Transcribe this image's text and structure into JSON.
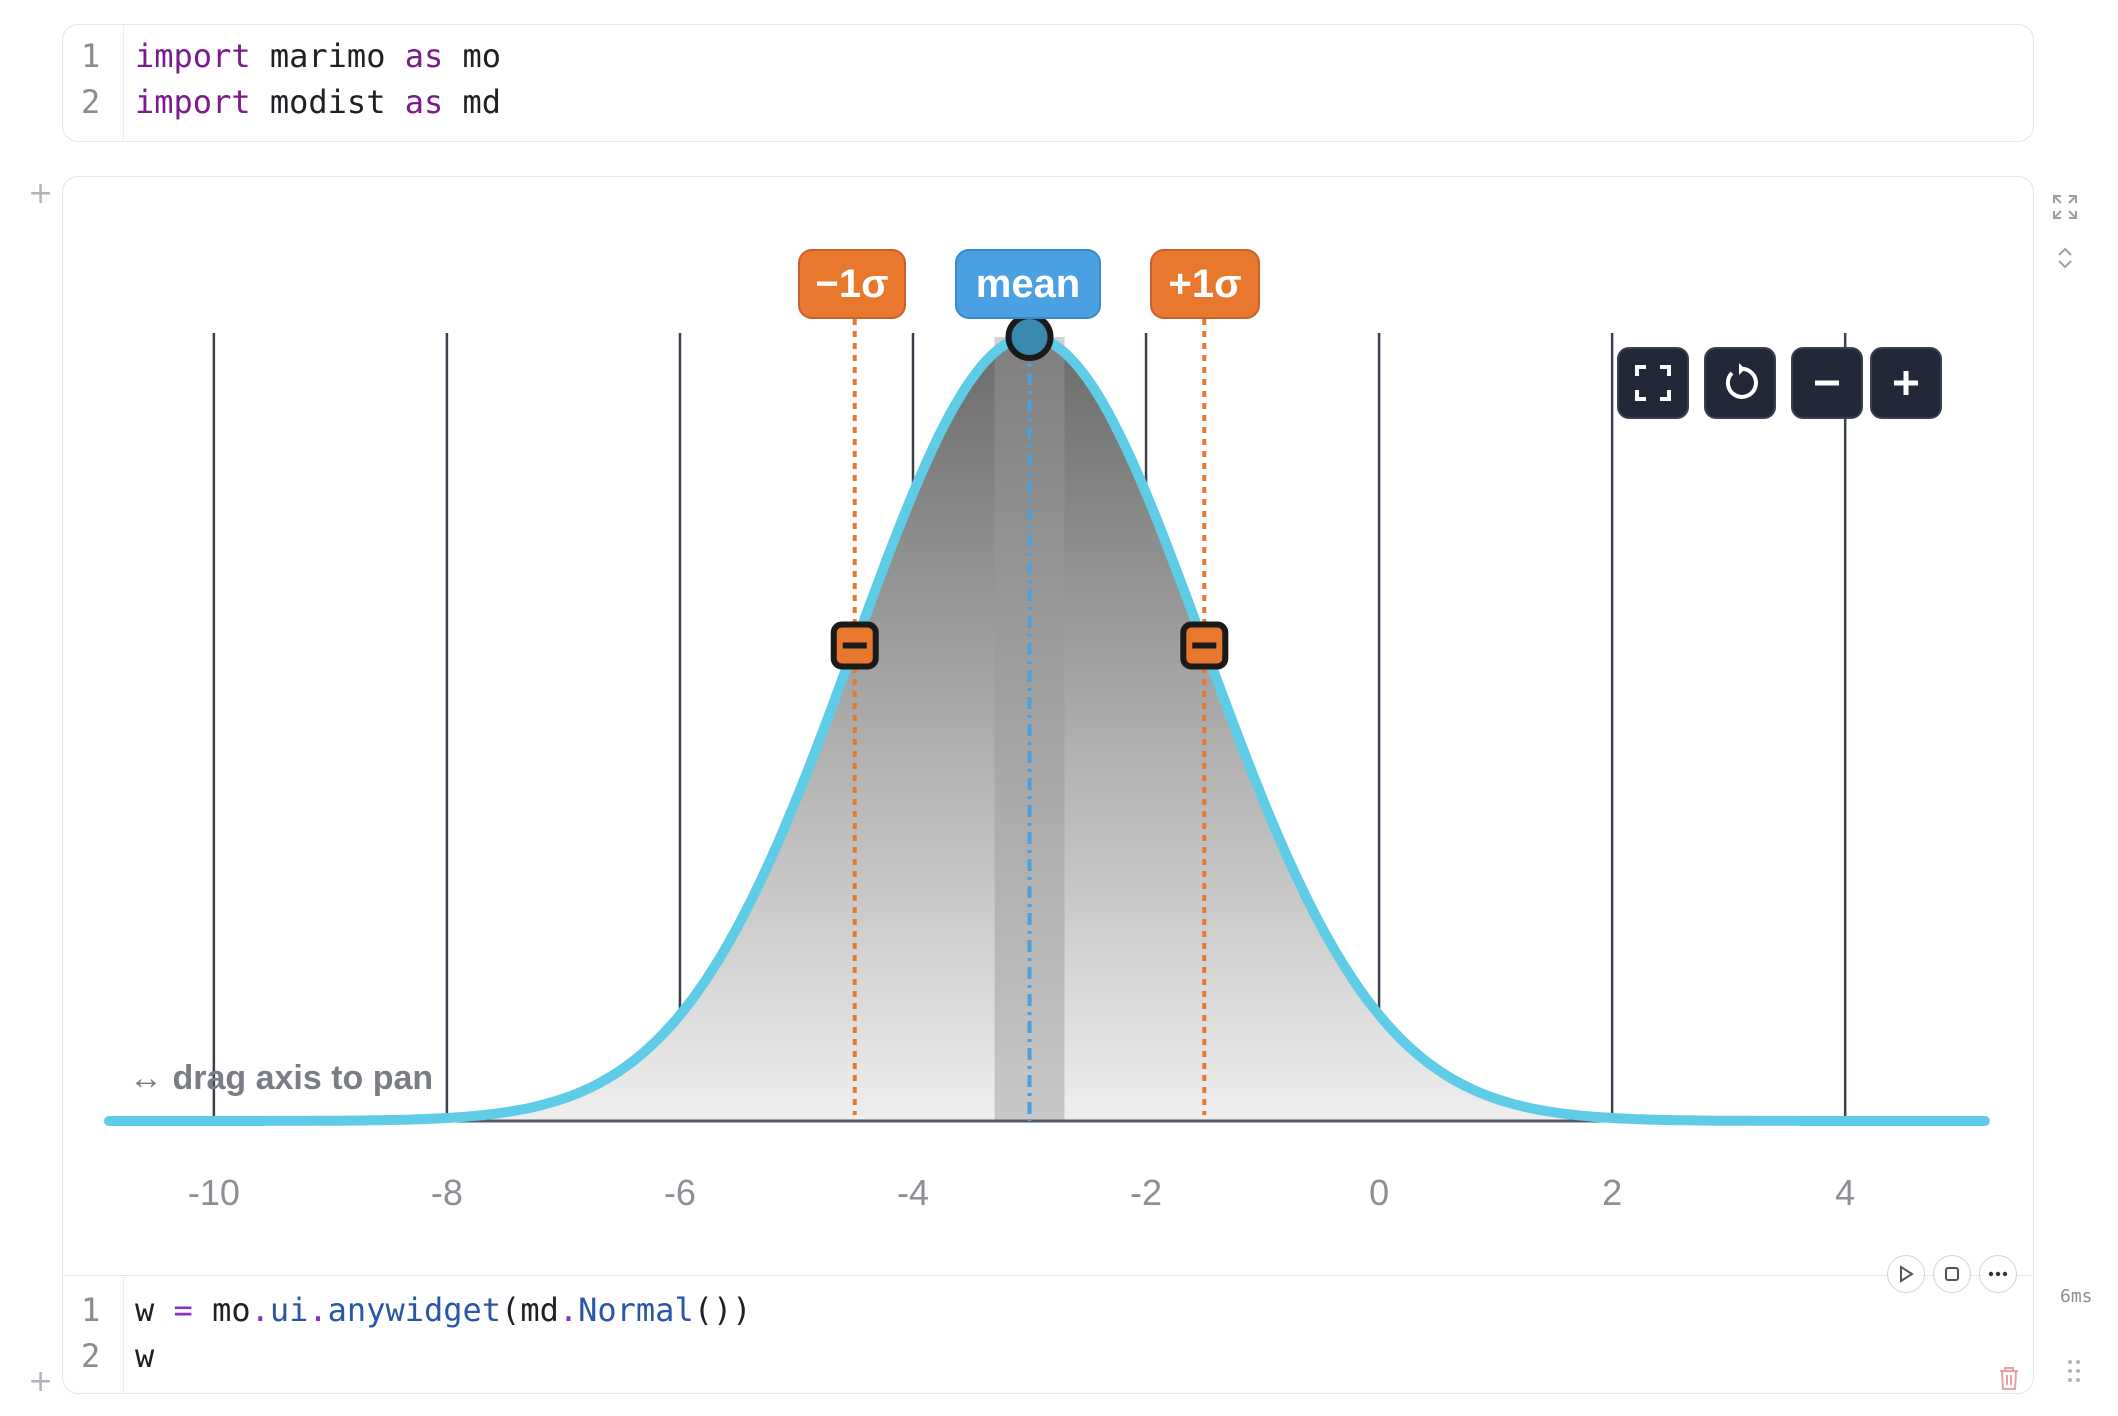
{
  "cell1": {
    "lines": [
      {
        "num": "1",
        "kw1": "import",
        "mod": " marimo ",
        "kw2": "as",
        "alias": " mo"
      },
      {
        "num": "2",
        "kw1": "import",
        "mod": " modist ",
        "kw2": "as",
        "alias": " md"
      }
    ]
  },
  "widget": {
    "labels": {
      "minus": "−1σ",
      "mean": "mean",
      "plus": "+1σ"
    },
    "pan_hint": "↔ drag axis to pan",
    "toolbar": [
      "fit-icon",
      "reset-icon",
      "zoom-out-icon",
      "zoom-in-icon"
    ]
  },
  "cell2": {
    "line1": {
      "num": "1",
      "var": "w",
      "eq": " = ",
      "obj": "mo",
      "dot1": ".",
      "attr": "ui",
      "dot2": ".",
      "fn": "anywidget",
      "p1": "(",
      "obj2": "md",
      "dot3": ".",
      "cls": "Normal",
      "p2": "())"
    },
    "line2": {
      "num": "2",
      "text": "w"
    },
    "timing": "6ms"
  },
  "chart_data": {
    "type": "area",
    "distribution": "normal",
    "mean": -3.0,
    "sigma": 1.5,
    "xlim": [
      -10.9,
      5.2
    ],
    "xticks": [
      -10,
      -8,
      -6,
      -4,
      -2,
      0,
      2,
      4
    ],
    "xtick_labels": [
      "-10",
      "-8",
      "-6",
      "-4",
      "-2",
      "0",
      "2",
      "4"
    ],
    "markers": {
      "mean": -3.0,
      "minus_1sigma": -4.5,
      "plus_1sigma": -1.5
    },
    "colors": {
      "curve": "#5ecce6",
      "sigma": "#e8782e",
      "mean": "#4aa0e0",
      "grid": "#3a404c",
      "button": "#222838"
    }
  }
}
